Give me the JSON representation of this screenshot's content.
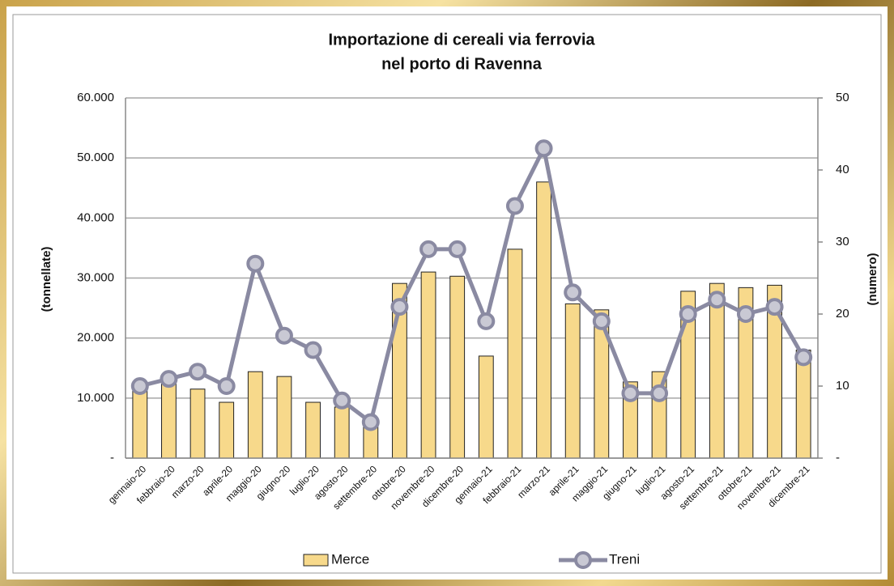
{
  "chart_data": {
    "type": "bar",
    "title": [
      "Importazione di cereali via ferrovia",
      "nel porto di Ravenna"
    ],
    "ylabel": "(tonnellate)",
    "y2label": "(numero)",
    "categories": [
      "gennaio-20",
      "febbraio-20",
      "marzo-20",
      "aprile-20",
      "maggio-20",
      "giugno-20",
      "luglio-20",
      "agosto-20",
      "settembre-20",
      "ottobre-20",
      "novembre-20",
      "dicembre-20",
      "gennaio-21",
      "febbraio-21",
      "marzo-21",
      "aprile-21",
      "maggio-21",
      "giugno-21",
      "luglio-21",
      "agosto-21",
      "settembre-21",
      "ottobre-21",
      "novembre-21",
      "dicembre-21"
    ],
    "series": [
      {
        "name": "Merce",
        "type": "bar",
        "color": "#f7d98b",
        "values": [
          11200,
          12500,
          11500,
          9300,
          14400,
          13600,
          9300,
          8500,
          5500,
          29100,
          31000,
          30300,
          17000,
          34800,
          46000,
          25700,
          24700,
          12700,
          14400,
          27800,
          29100,
          28400,
          28800,
          18000
        ]
      },
      {
        "name": "Treni",
        "type": "line",
        "axis": "y2",
        "color": "#8a8aa2",
        "values": [
          10,
          11,
          12,
          10,
          27,
          17,
          15,
          8,
          5,
          21,
          29,
          29,
          19,
          35,
          43,
          23,
          19,
          9,
          9,
          20,
          22,
          20,
          21,
          14
        ]
      }
    ],
    "ylim": [
      0,
      60000
    ],
    "yticks": [
      {
        "value": 0,
        "label": "-"
      },
      {
        "value": 10000,
        "label": "10.000"
      },
      {
        "value": 20000,
        "label": "20.000"
      },
      {
        "value": 30000,
        "label": "30.000"
      },
      {
        "value": 40000,
        "label": "40.000"
      },
      {
        "value": 50000,
        "label": "50.000"
      },
      {
        "value": 60000,
        "label": "60.000"
      }
    ],
    "y2lim": [
      0,
      50
    ],
    "y2ticks": [
      {
        "value": 0,
        "label": "-"
      },
      10,
      20,
      30,
      40,
      50
    ],
    "grid": true,
    "legend": "bottom"
  }
}
